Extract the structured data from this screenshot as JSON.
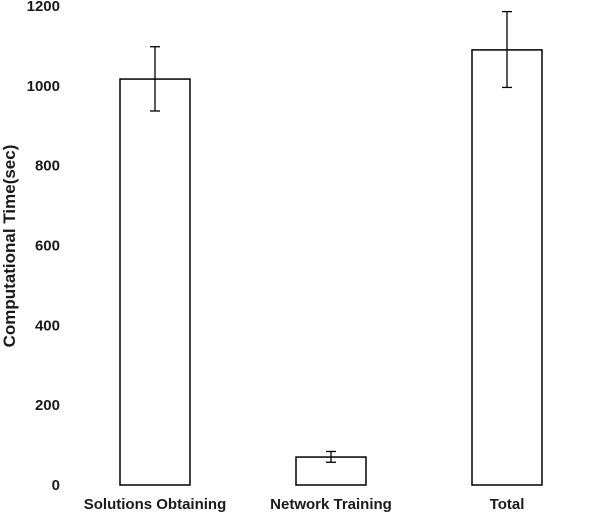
{
  "chart_data": {
    "type": "bar",
    "title": "",
    "xlabel": "",
    "ylabel": "Computational Time(sec)",
    "ylim": [
      0,
      1200
    ],
    "yticks": [
      0,
      200,
      400,
      600,
      800,
      1000,
      1200
    ],
    "ytick_labels": [
      "0",
      "200",
      "400",
      "600",
      "800",
      "1000",
      "1200"
    ],
    "grid": false,
    "legend": "none",
    "categories": [
      "Solutions Obtaining",
      "Network Training",
      "Total"
    ],
    "values": [
      1017,
      70,
      1090
    ],
    "errors": [
      {
        "low": 937,
        "high": 1098
      },
      {
        "low": 57,
        "high": 84
      },
      {
        "low": 996,
        "high": 1186
      }
    ],
    "colors": {
      "bar_fill": "#ffffff",
      "bar_edge": "#000000",
      "text": "#1a1a1a"
    }
  }
}
